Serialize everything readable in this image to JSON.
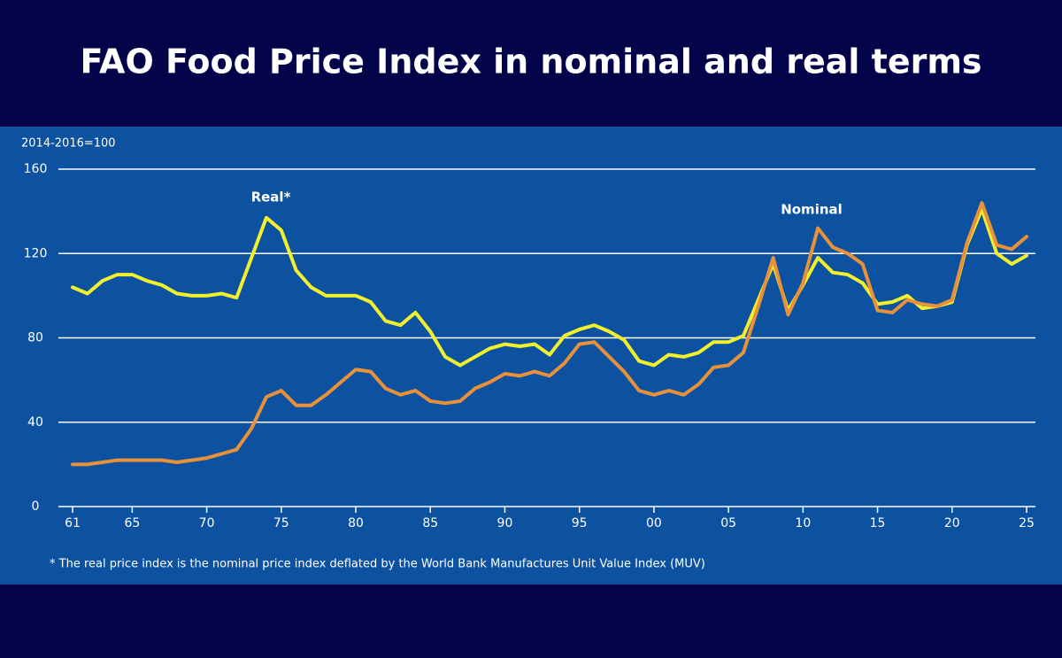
{
  "chart_data": {
    "type": "line",
    "title": "FAO Food Price Index in nominal and real terms",
    "y_unit_label": "2014-2016=100",
    "footnote": "* The real price index is the nominal price index deflated by the World Bank Manufactures Unit Value Index (MUV)",
    "x": [
      1961,
      1962,
      1963,
      1964,
      1965,
      1966,
      1967,
      1968,
      1969,
      1970,
      1971,
      1972,
      1973,
      1974,
      1975,
      1976,
      1977,
      1978,
      1979,
      1980,
      1981,
      1982,
      1983,
      1984,
      1985,
      1986,
      1987,
      1988,
      1989,
      1990,
      1991,
      1992,
      1993,
      1994,
      1995,
      1996,
      1997,
      1998,
      1999,
      2000,
      2001,
      2002,
      2003,
      2004,
      2005,
      2006,
      2007,
      2008,
      2009,
      2010,
      2011,
      2012,
      2013,
      2014,
      2015,
      2016,
      2017,
      2018,
      2019,
      2020,
      2021,
      2022,
      2023,
      2024,
      2025
    ],
    "series": [
      {
        "name": "Real*",
        "color": "#f2f02c",
        "values": [
          104,
          101,
          107,
          110,
          110,
          107,
          105,
          101,
          100,
          100,
          101,
          99,
          118,
          137,
          131,
          112,
          104,
          100,
          100,
          100,
          97,
          88,
          86,
          92,
          83,
          71,
          67,
          71,
          75,
          77,
          76,
          77,
          72,
          81,
          84,
          86,
          83,
          79,
          69,
          67,
          72,
          71,
          73,
          78,
          78,
          81,
          98,
          115,
          93,
          105,
          118,
          111,
          110,
          106,
          96,
          97,
          100,
          94,
          95,
          97,
          124,
          141,
          120,
          115,
          119
        ]
      },
      {
        "name": "Nominal",
        "color": "#e8913a",
        "values": [
          20,
          20,
          21,
          22,
          22,
          22,
          22,
          21,
          22,
          23,
          25,
          27,
          37,
          52,
          55,
          48,
          48,
          53,
          59,
          65,
          64,
          56,
          53,
          55,
          50,
          49,
          50,
          56,
          59,
          63,
          62,
          64,
          62,
          68,
          77,
          78,
          71,
          64,
          55,
          53,
          55,
          53,
          58,
          66,
          67,
          73,
          95,
          118,
          91,
          106,
          132,
          123,
          120,
          115,
          93,
          92,
          98,
          96,
          95,
          98,
          125,
          144,
          124,
          122,
          128
        ]
      }
    ],
    "xlim": [
      1961,
      2025
    ],
    "xticks": [
      {
        "value": 1961,
        "label": "61"
      },
      {
        "value": 1965,
        "label": "65"
      },
      {
        "value": 1970,
        "label": "70"
      },
      {
        "value": 1975,
        "label": "75"
      },
      {
        "value": 1980,
        "label": "80"
      },
      {
        "value": 1985,
        "label": "85"
      },
      {
        "value": 1990,
        "label": "90"
      },
      {
        "value": 1995,
        "label": "95"
      },
      {
        "value": 2000,
        "label": "00"
      },
      {
        "value": 2005,
        "label": "05"
      },
      {
        "value": 2010,
        "label": "10"
      },
      {
        "value": 2015,
        "label": "15"
      },
      {
        "value": 2020,
        "label": "20"
      },
      {
        "value": 2025,
        "label": "25"
      }
    ],
    "ylim": [
      0,
      160
    ],
    "yticks": [
      0,
      40,
      80,
      120,
      160
    ],
    "grid": true
  }
}
